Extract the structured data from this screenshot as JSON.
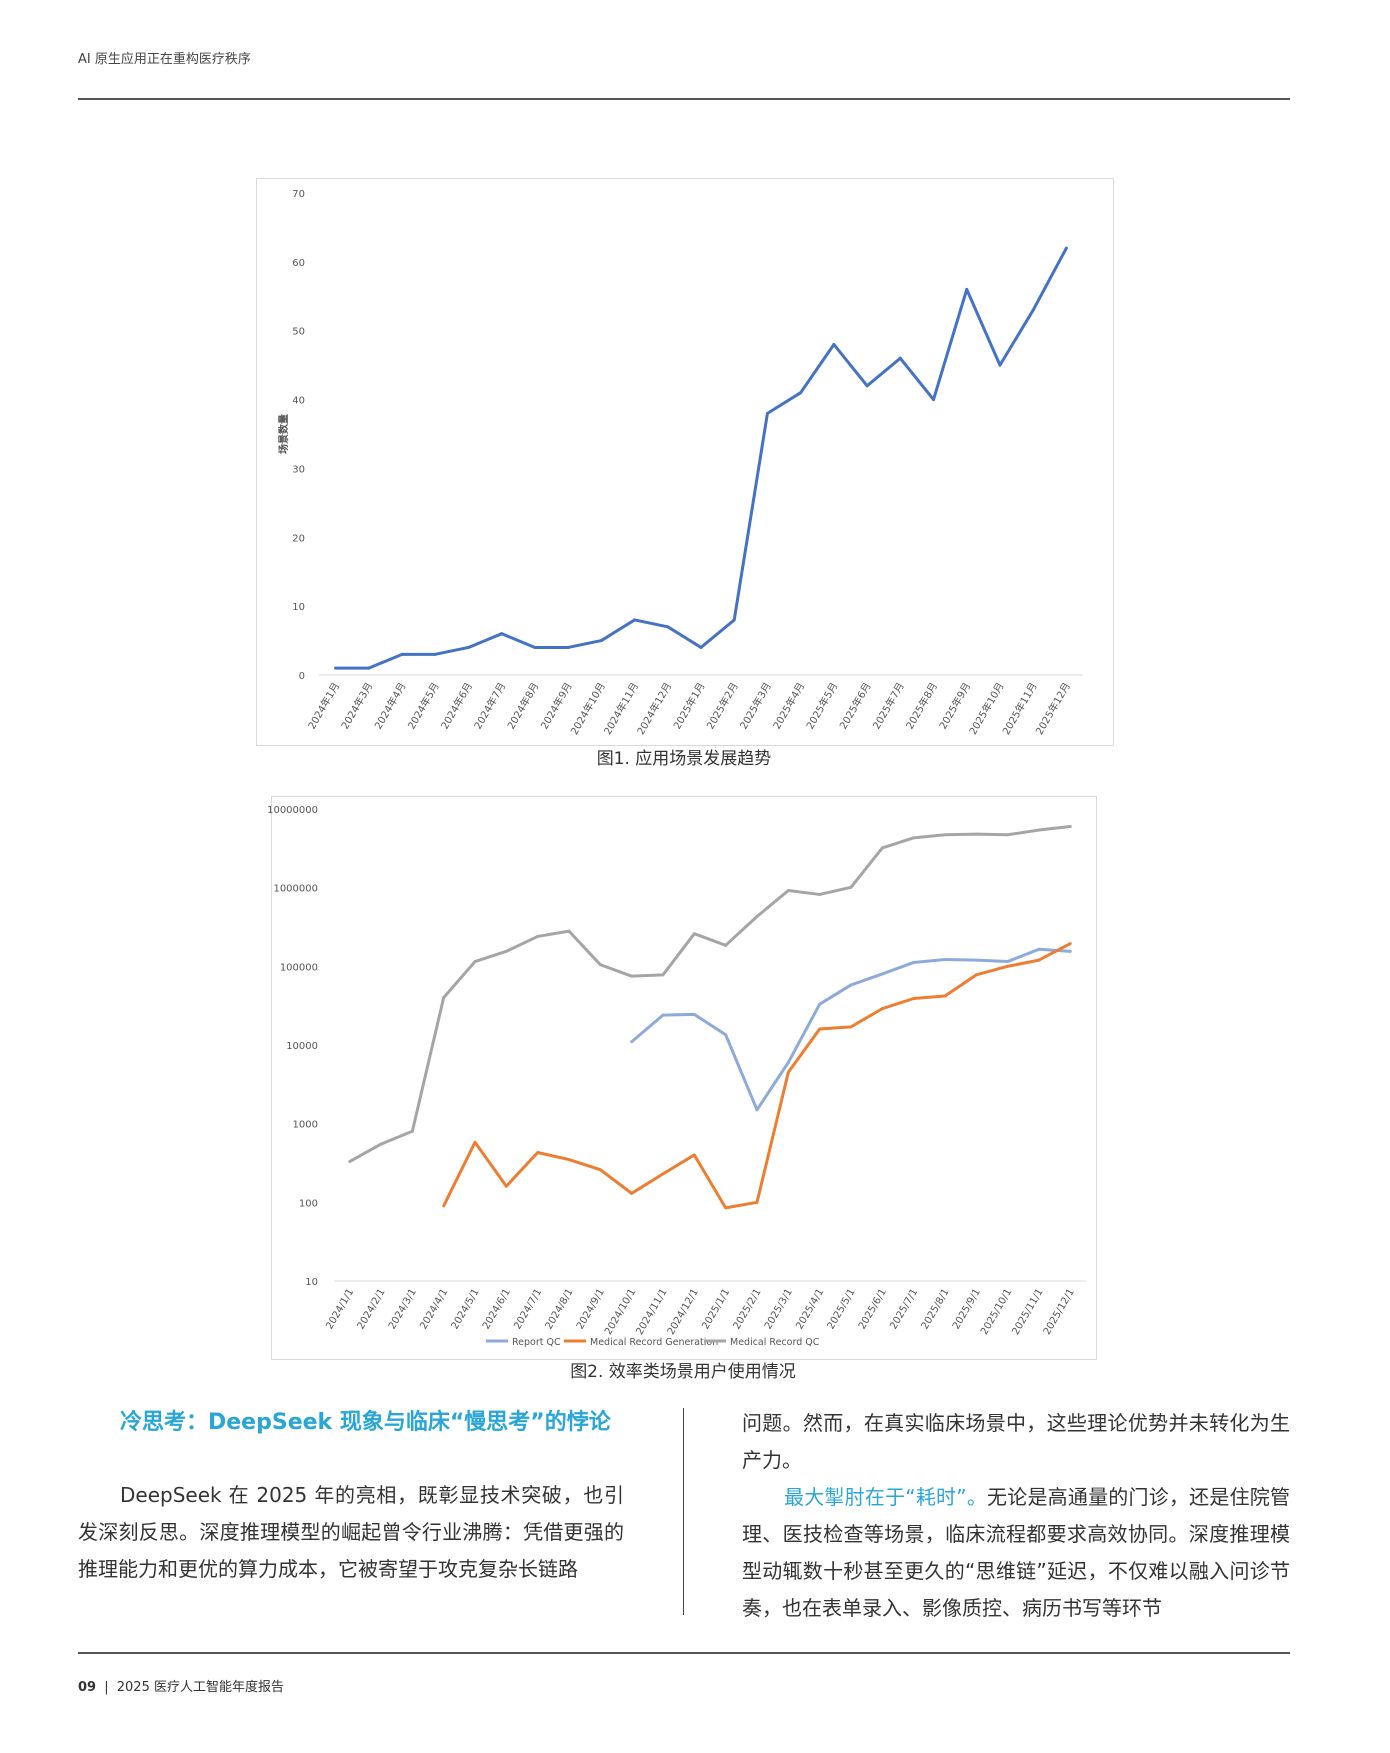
{
  "header": {
    "title": "AI 原生应用正在重构医疗秩序"
  },
  "figure1": {
    "caption": "图1. 应用场景发展趋势",
    "chart_data": {
      "type": "line",
      "ylabel": "场景数量",
      "ylim": [
        0,
        70
      ],
      "yticks": [
        "0",
        "10",
        "20",
        "30",
        "40",
        "50",
        "60",
        "70"
      ],
      "categories": [
        "2024年1月",
        "2024年3月",
        "2024年4月",
        "2024年5月",
        "2024年6月",
        "2024年7月",
        "2024年8月",
        "2024年9月",
        "2024年10月",
        "2024年11月",
        "2024年12月",
        "2025年1月",
        "2025年2月",
        "2025年3月",
        "2025年4月",
        "2025年5月",
        "2025年6月",
        "2025年7月",
        "2025年8月",
        "2025年9月",
        "2025年10月",
        "2025年11月",
        "2025年12月"
      ],
      "series": [
        {
          "values": [
            1,
            1,
            3,
            3,
            4,
            6,
            4,
            4,
            5,
            8,
            7,
            4,
            8,
            38,
            41,
            48,
            42,
            46,
            40,
            56,
            45,
            53,
            62
          ],
          "color": "#4472c4"
        }
      ],
      "grid": false
    }
  },
  "figure2": {
    "caption": "图2. 效率类场景用户使用情况",
    "chart_data": {
      "type": "line",
      "yscale": "log",
      "ylim": [
        10,
        10000000
      ],
      "yticks": [
        "10",
        "100",
        "1000",
        "10000",
        "100000",
        "1000000",
        "10000000"
      ],
      "categories": [
        "2024/1/1",
        "2024/2/1",
        "2024/3/1",
        "2024/4/1",
        "2024/5/1",
        "2024/6/1",
        "2024/7/1",
        "2024/8/1",
        "2024/9/1",
        "2024/10/1",
        "2024/11/1",
        "2024/12/1",
        "2025/1/1",
        "2025/2/1",
        "2025/3/1",
        "2025/4/1",
        "2025/5/1",
        "2025/6/1",
        "2025/7/1",
        "2025/8/1",
        "2025/9/1",
        "2025/10/1",
        "2025/11/1",
        "2025/12/1"
      ],
      "series": [
        {
          "name": "Report QC",
          "color": "#8eaadb",
          "values": [
            null,
            null,
            null,
            null,
            null,
            null,
            null,
            null,
            null,
            11000,
            24000,
            24500,
            13500,
            1500,
            6000,
            33000,
            58000,
            80000,
            112000,
            122000,
            120000,
            115000,
            165000,
            155000
          ]
        },
        {
          "name": "Medical Record Generation",
          "color": "#ed7d31",
          "values": [
            null,
            null,
            null,
            90,
            580,
            160,
            430,
            350,
            260,
            130,
            230,
            400,
            85,
            100,
            4500,
            16000,
            17000,
            29000,
            39000,
            42000,
            78000,
            100000,
            120000,
            195000
          ]
        },
        {
          "name": "Medical Record QC",
          "color": "#a5a5a5",
          "values": [
            330,
            550,
            800,
            40000,
            115000,
            155000,
            240000,
            280000,
            105000,
            75000,
            78000,
            260000,
            185000,
            430000,
            920000,
            820000,
            1010000,
            3200000,
            4300000,
            4700000,
            4800000,
            4700000,
            5400000,
            6000000
          ]
        }
      ],
      "legend": "bottom",
      "grid": false
    }
  },
  "section": {
    "heading": "冷思考：DeepSeek 现象与临床“慢思考”的悖论",
    "para1": "DeepSeek 在 2025 年的亮相，既彰显技术突破，也引发深刻反思。深度推理模型的崛起曾令行业沸腾：凭借更强的推理能力和更优的算力成本，它被寄望于攻克复杂长链路",
    "para2": "问题。然而，在真实临床场景中，这些理论优势并未转化为生产力。",
    "para3_highlight": "最大掣肘在于“耗时”。",
    "para3_rest": "无论是高通量的门诊，还是住院管理、医技检查等场景，临床流程都要求高效协同。深度推理模型动辄数十秒甚至更久的“思维链”延迟，不仅难以融入问诊节奏，也在表单录入、影像质控、病历书写等环节"
  },
  "footer": {
    "page": "09",
    "separator": "|",
    "title": "2025 医疗人工智能年度报告"
  }
}
